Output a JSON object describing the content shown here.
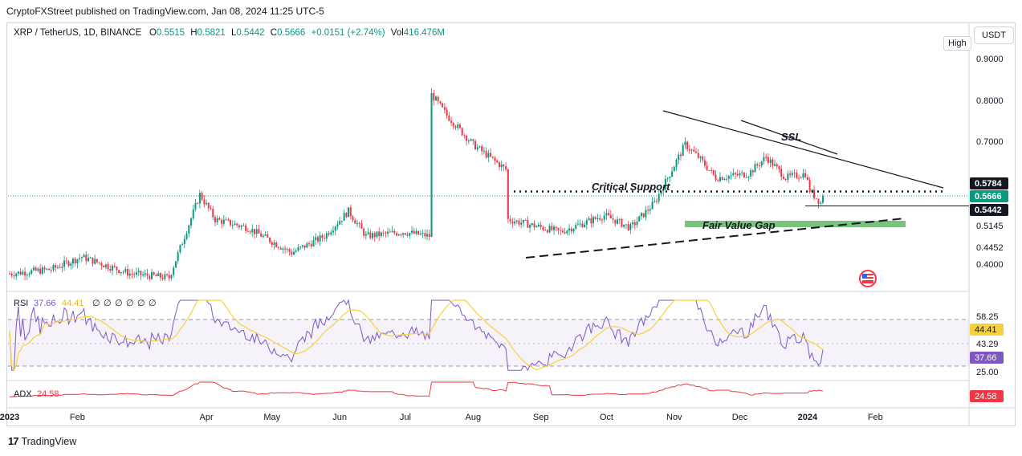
{
  "header": {
    "published_by": "CryptoFXStreet published on TradingView.com, Jan 08, 2024 11:25 UTC-5"
  },
  "symbol_bar": {
    "pair": "XRP / TetherUS, 1D, BINANCE",
    "o_label": "O",
    "o_value": "0.5515",
    "h_label": "H",
    "h_value": "0.5821",
    "l_label": "L",
    "l_value": "0.5442",
    "c_label": "C",
    "c_value": "0.5666",
    "change": "+0.0151 (+2.74%)",
    "vol_label": "Vol",
    "vol_value": "416.476M"
  },
  "buttons": {
    "high": "High",
    "currency": "USDT"
  },
  "footer": {
    "brand": "TradingView"
  },
  "colors": {
    "up": "#089981",
    "down": "#f23645",
    "rsi": "#7e57c2",
    "rsi_ma": "#f7d13b",
    "adx": "#f23645",
    "fvg": "#4caf50",
    "label_dark": "#131722"
  },
  "chart_data": {
    "type": "candlestick",
    "panes": [
      {
        "name": "price",
        "y_ticks": [
          "0.9000",
          "0.8000",
          "0.7000",
          "0.5145",
          "0.4452",
          "0.4000"
        ],
        "price_labels": [
          {
            "value": "0.5784",
            "style": "dark"
          },
          {
            "value": "0.5666",
            "style": "green"
          },
          {
            "value": "0.5442",
            "style": "dark"
          }
        ],
        "annotations": [
          "Critical Support",
          "SSL",
          "Fair Value Gap"
        ],
        "anchors": [
          {
            "date": "2023-01-01",
            "close": 0.38
          },
          {
            "date": "2023-01-20",
            "close": 0.39
          },
          {
            "date": "2023-02-03",
            "close": 0.42
          },
          {
            "date": "2023-02-25",
            "close": 0.38
          },
          {
            "date": "2023-03-15",
            "close": 0.37
          },
          {
            "date": "2023-03-29",
            "close": 0.57
          },
          {
            "date": "2023-04-05",
            "close": 0.51
          },
          {
            "date": "2023-04-20",
            "close": 0.49
          },
          {
            "date": "2023-05-10",
            "close": 0.43
          },
          {
            "date": "2023-05-25",
            "close": 0.47
          },
          {
            "date": "2023-06-05",
            "close": 0.53
          },
          {
            "date": "2023-06-13",
            "close": 0.47
          },
          {
            "date": "2023-06-30",
            "close": 0.48
          },
          {
            "date": "2023-07-12",
            "close": 0.47
          },
          {
            "date": "2023-07-13",
            "close": 0.81
          },
          {
            "date": "2023-07-20",
            "close": 0.76
          },
          {
            "date": "2023-08-01",
            "close": 0.69
          },
          {
            "date": "2023-08-16",
            "close": 0.63
          },
          {
            "date": "2023-08-17",
            "close": 0.51
          },
          {
            "date": "2023-09-10",
            "close": 0.48
          },
          {
            "date": "2023-09-30",
            "close": 0.52
          },
          {
            "date": "2023-10-12",
            "close": 0.49
          },
          {
            "date": "2023-10-23",
            "close": 0.55
          },
          {
            "date": "2023-11-06",
            "close": 0.69
          },
          {
            "date": "2023-11-12",
            "close": 0.66
          },
          {
            "date": "2023-11-20",
            "close": 0.61
          },
          {
            "date": "2023-12-05",
            "close": 0.62
          },
          {
            "date": "2023-12-13",
            "close": 0.66
          },
          {
            "date": "2023-12-22",
            "close": 0.61
          },
          {
            "date": "2023-12-31",
            "close": 0.62
          },
          {
            "date": "2024-01-02",
            "close": 0.58
          },
          {
            "date": "2024-01-07",
            "close": 0.55
          },
          {
            "date": "2024-01-08",
            "close": 0.5666
          }
        ]
      },
      {
        "name": "RSI",
        "label": "RSI",
        "values_text": [
          "37.66",
          "44.41",
          "∅",
          "∅",
          "∅",
          "∅",
          "∅",
          "∅"
        ],
        "y_ticks": [
          "58.25",
          "43.29",
          "25.00"
        ],
        "badges": [
          {
            "value": "44.41",
            "color": "#f7d13b"
          },
          {
            "value": "37.66",
            "color": "#7e57c2"
          }
        ]
      },
      {
        "name": "ADX",
        "label": "ADX",
        "value_text": "24.58",
        "badges": [
          {
            "value": "24.58",
            "color": "#f23645"
          }
        ]
      }
    ],
    "x_ticks": [
      "2023",
      "Feb",
      "Apr",
      "May",
      "Jun",
      "Jul",
      "Aug",
      "Sep",
      "Oct",
      "Nov",
      "Dec",
      "2024",
      "Feb"
    ]
  }
}
